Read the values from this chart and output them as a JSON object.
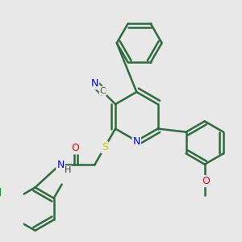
{
  "bg_color": "#e8e8e8",
  "bond_color": "#2d6b3c",
  "bond_width": 1.8,
  "atom_colors": {
    "N": "#0000ff",
    "O": "#ff0000",
    "S": "#cccc00",
    "Cl": "#00aa00",
    "C": "#2d6b3c",
    "H": "#333333"
  },
  "font_size": 9
}
